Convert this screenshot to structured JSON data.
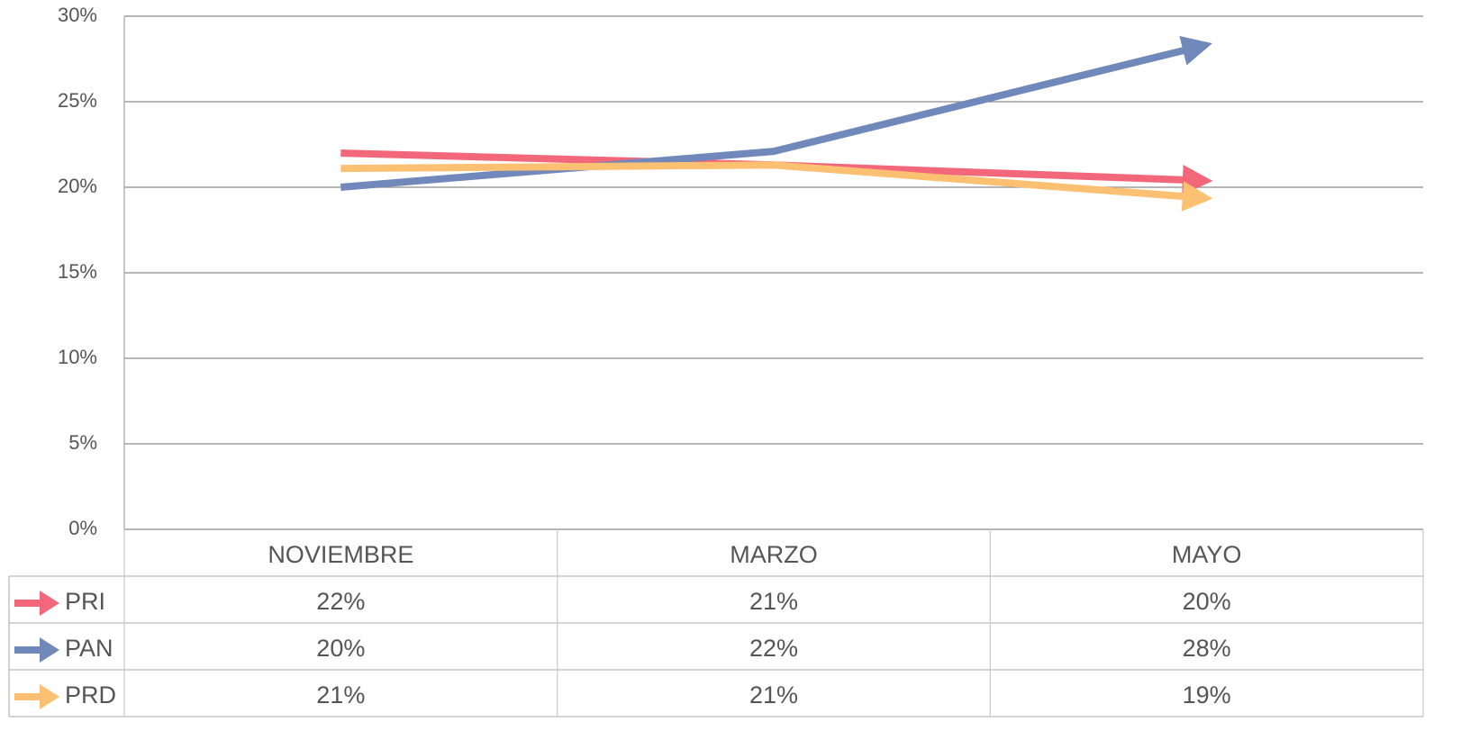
{
  "chart_data": {
    "type": "line",
    "categories": [
      "NOVIEMBRE",
      "MARZO",
      "MAYO"
    ],
    "series": [
      {
        "name": "PRI",
        "color": "#f2677a",
        "values": [
          22,
          21.3,
          20.4
        ],
        "value_labels": [
          "22%",
          "21%",
          "20%"
        ]
      },
      {
        "name": "PAN",
        "color": "#7088ba",
        "values": [
          20,
          22.1,
          28.2
        ],
        "value_labels": [
          "20%",
          "22%",
          "28%"
        ]
      },
      {
        "name": "PRD",
        "color": "#fcc072",
        "values": [
          21.1,
          21.3,
          19.4
        ],
        "value_labels": [
          "21%",
          "21%",
          "19%"
        ]
      }
    ],
    "ylim": [
      0,
      30
    ],
    "yticks": [
      {
        "value": 0,
        "label": "0%"
      },
      {
        "value": 5,
        "label": "5%"
      },
      {
        "value": 10,
        "label": "10%"
      },
      {
        "value": 15,
        "label": "15%"
      },
      {
        "value": 20,
        "label": "20%"
      },
      {
        "value": 25,
        "label": "25%"
      },
      {
        "value": 30,
        "label": "30%"
      }
    ],
    "grid": true
  }
}
